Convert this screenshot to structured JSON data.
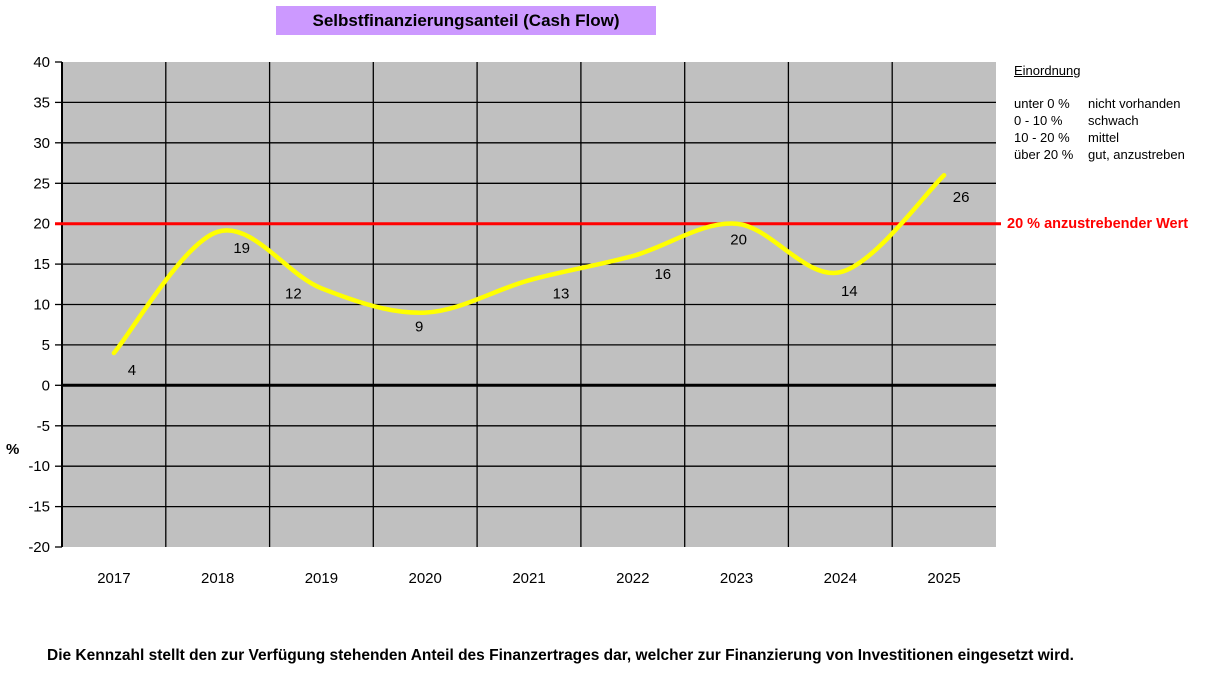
{
  "chart_data": {
    "type": "line",
    "smooth": true,
    "title": "Selbstfinanzierungsanteil (Cash Flow)",
    "categories": [
      "2017",
      "2018",
      "2019",
      "2020",
      "2021",
      "2022",
      "2023",
      "2024",
      "2025"
    ],
    "series": [
      {
        "values": [
          4,
          19,
          12,
          9,
          13,
          16,
          20,
          14,
          26
        ],
        "color": "#FFFF00",
        "labels_shown": true
      }
    ],
    "ylim": [
      -20,
      40
    ],
    "ytick_step": 5,
    "ylabel": "%",
    "xlabel": "",
    "grid": true,
    "legend_position": "none",
    "plot_bg": "#C0C0C0",
    "reference_line": {
      "value": 20,
      "label": "20 % anzustrebender Wert",
      "color": "#FF0000"
    }
  },
  "classification": {
    "heading": "Einordnung",
    "rows": [
      {
        "range": "unter 0 %",
        "meaning": "nicht vorhanden"
      },
      {
        "range": "0 - 10 %",
        "meaning": "schwach"
      },
      {
        "range": "10 - 20 %",
        "meaning": "mittel"
      },
      {
        "range": "über 20 %",
        "meaning": "gut, anzustreben"
      }
    ]
  },
  "description": "Die Kennzahl stellt den zur Verfügung stehenden Anteil des Finanzertrages dar, welcher zur Finanzierung von Investitionen eingesetzt wird.",
  "colors": {
    "title_bg": "#CC99FF",
    "plot_bg": "#C0C0C0",
    "grid": "#000000",
    "axis": "#000000",
    "zero_line": "#000000",
    "series_line": "#FFFF00",
    "reference_line": "#FF0000",
    "text": "#000000"
  }
}
